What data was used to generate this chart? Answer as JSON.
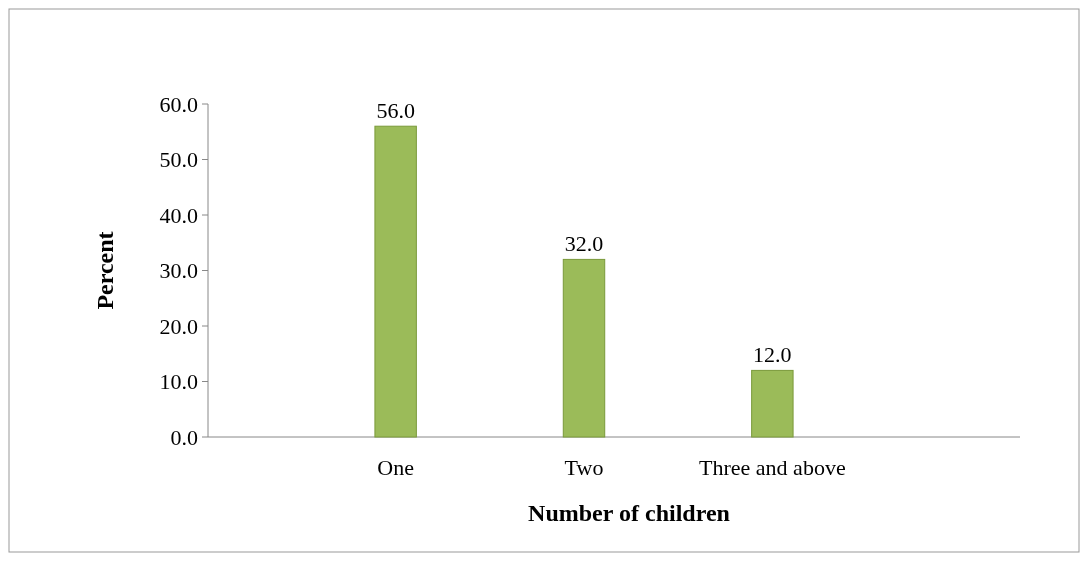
{
  "chart_data": {
    "type": "bar",
    "xlabel": "Number of children",
    "ylabel": "Percent",
    "categories": [
      "One",
      "Two",
      "Three and above"
    ],
    "values": [
      56,
      32,
      12
    ],
    "value_labels": [
      "56.0",
      "32.0",
      "12.0"
    ],
    "color": "#9bbb59",
    "ylim": [
      0,
      60
    ],
    "yticks": [
      {
        "value": 0,
        "label": "0.0"
      },
      {
        "value": 10,
        "label": "10.0"
      },
      {
        "value": 20,
        "label": "20.0"
      },
      {
        "value": 30,
        "label": "30.0"
      },
      {
        "value": 40,
        "label": "40.0"
      },
      {
        "value": 50,
        "label": "50.0"
      },
      {
        "value": 60,
        "label": "60.0"
      }
    ],
    "grid": false
  }
}
